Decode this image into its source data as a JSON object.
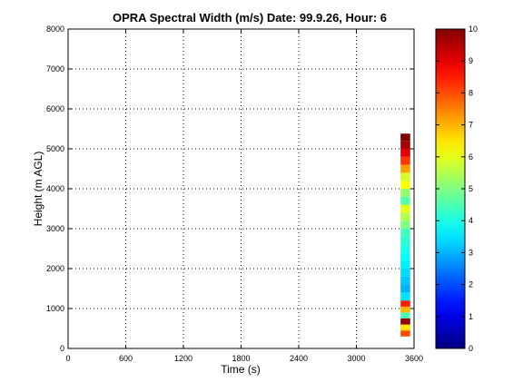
{
  "chart_data": {
    "type": "heatmap",
    "title": "OPRA Spectral Width (m/s)  Date: 99.9.26, Hour: 6",
    "xlabel": "Time (s)",
    "ylabel": "Height (m AGL)",
    "xlim": [
      0,
      3600
    ],
    "ylim": [
      0,
      8000
    ],
    "x_ticks": [
      0,
      600,
      1200,
      1800,
      2400,
      3000,
      3600
    ],
    "y_ticks": [
      0,
      1000,
      2000,
      3000,
      4000,
      5000,
      6000,
      7000,
      8000
    ],
    "grid": true,
    "colorbar": {
      "colormap": "jet",
      "clim": [
        0,
        10
      ],
      "ticks": [
        0,
        1,
        2,
        3,
        4,
        5,
        6,
        7,
        8,
        9,
        10
      ]
    },
    "data_column": {
      "x_range": [
        3460,
        3560
      ],
      "cells": [
        {
          "height": [
            300,
            450
          ],
          "value": 8.0
        },
        {
          "height": [
            450,
            600
          ],
          "value": 6.5
        },
        {
          "height": [
            600,
            750
          ],
          "value": 9.8
        },
        {
          "height": [
            750,
            900
          ],
          "value": 4.5
        },
        {
          "height": [
            900,
            1050
          ],
          "value": 7.0
        },
        {
          "height": [
            1050,
            1200
          ],
          "value": 8.5
        },
        {
          "height": [
            1200,
            1400
          ],
          "value": 3.5
        },
        {
          "height": [
            1400,
            1600
          ],
          "value": 3.0
        },
        {
          "height": [
            1600,
            1800
          ],
          "value": 3.2
        },
        {
          "height": [
            1800,
            2000
          ],
          "value": 3.4
        },
        {
          "height": [
            2000,
            2200
          ],
          "value": 3.6
        },
        {
          "height": [
            2200,
            2400
          ],
          "value": 3.8
        },
        {
          "height": [
            2400,
            2600
          ],
          "value": 4.0
        },
        {
          "height": [
            2600,
            2800
          ],
          "value": 4.2
        },
        {
          "height": [
            2800,
            3000
          ],
          "value": 4.4
        },
        {
          "height": [
            3000,
            3200
          ],
          "value": 5.0
        },
        {
          "height": [
            3200,
            3400
          ],
          "value": 5.5
        },
        {
          "height": [
            3400,
            3600
          ],
          "value": 6.0
        },
        {
          "height": [
            3600,
            3800
          ],
          "value": 4.6
        },
        {
          "height": [
            3800,
            4000
          ],
          "value": 5.2
        },
        {
          "height": [
            4000,
            4200
          ],
          "value": 6.2
        },
        {
          "height": [
            4200,
            4400
          ],
          "value": 5.8
        },
        {
          "height": [
            4400,
            4600
          ],
          "value": 7.2
        },
        {
          "height": [
            4600,
            4800
          ],
          "value": 8.2
        },
        {
          "height": [
            4800,
            5000
          ],
          "value": 9.0
        },
        {
          "height": [
            5000,
            5200
          ],
          "value": 9.6
        },
        {
          "height": [
            5200,
            5380
          ],
          "value": 10.0
        }
      ]
    }
  }
}
